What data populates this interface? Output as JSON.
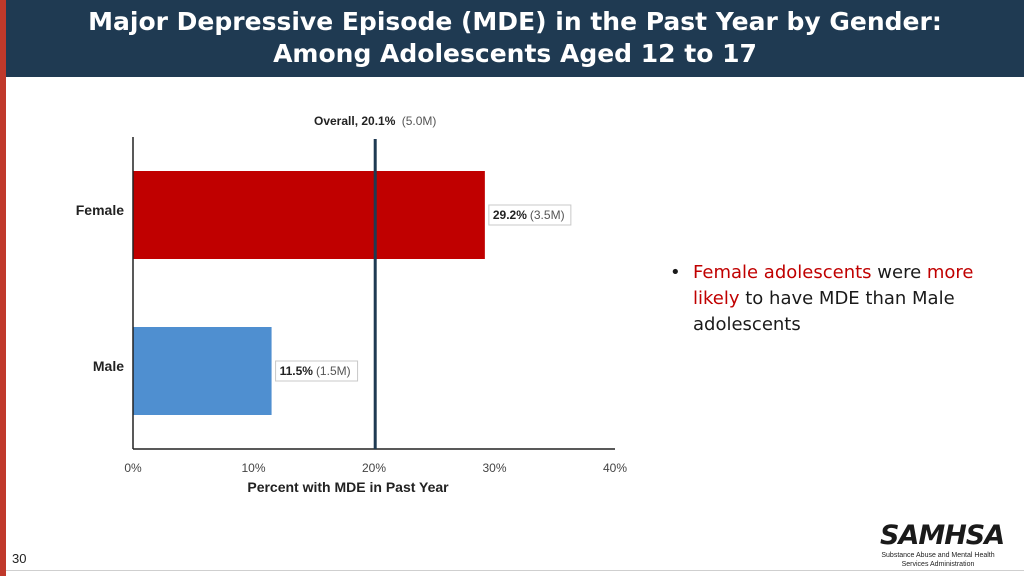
{
  "slide": {
    "title_line1": "Major Depressive Episode (MDE) in the Past Year by Gender:",
    "title_line2": "Among Adolescents Aged 12 to 17",
    "page_number": "30"
  },
  "bullet": {
    "part1": "Female adolescents",
    "part2": " were ",
    "part3": "more likely",
    "part4": " to have MDE than Male adolescents"
  },
  "logo": {
    "name": "SAMHSA",
    "subtitle_line1": "Substance Abuse and Mental Health",
    "subtitle_line2": "Services Administration"
  },
  "colors": {
    "female": "#c00000",
    "male": "#4f8fd0",
    "header": "#1f3a52",
    "reference_line": "#1f3a52"
  },
  "chart_data": {
    "type": "bar",
    "orientation": "horizontal",
    "categories": [
      "Female",
      "Male"
    ],
    "values": [
      29.2,
      11.5
    ],
    "value_labels": [
      "29.2%",
      "11.5%"
    ],
    "count_labels": [
      "(3.5M)",
      "(1.5M)"
    ],
    "xlabel": "Percent with MDE in Past Year",
    "ylabel": "",
    "xlim": [
      0,
      40
    ],
    "xticks": [
      0,
      10,
      20,
      30,
      40
    ],
    "xtick_labels": [
      "0%",
      "10%",
      "20%",
      "30%",
      "40%"
    ],
    "reference_line": {
      "value": 20.1,
      "label": "Overall, 20.1%",
      "count": "(5.0M)"
    },
    "grid": false
  }
}
